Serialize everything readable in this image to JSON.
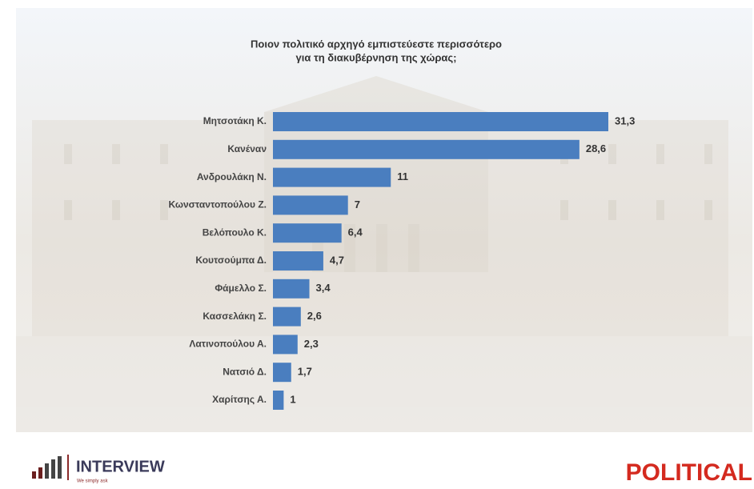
{
  "chart_data": {
    "type": "hbar",
    "title": [
      "Ποιον πολιτικό αρχηγό εμπιστεύεστε περισσότερο",
      "για τη διακυβέρνηση της χώρας;"
    ],
    "categories": [
      "Μητσοτάκη Κ.",
      "Κανέναν",
      "Ανδρουλάκη Ν.",
      "Κωνσταντοπούλου Ζ.",
      "Βελόπουλο Κ.",
      "Κουτσούμπα Δ.",
      "Φάμελλο Σ.",
      "Κασσελάκη Σ.",
      "Λατινοπούλου Α.",
      "Νατσιό Δ.",
      "Χαρίτσης Α."
    ],
    "values": [
      31.3,
      28.6,
      11,
      7,
      6.4,
      4.7,
      3.4,
      2.6,
      2.3,
      1.7,
      1
    ],
    "value_labels": [
      "31,3",
      "28,6",
      "11",
      "7",
      "6,4",
      "4,7",
      "3,4",
      "2,6",
      "2,3",
      "1,7",
      "1"
    ],
    "color": "#4a7ebf"
  },
  "logos": {
    "left": "INTERVIEW",
    "tagline": "We simply ask",
    "right": "POLITICAL"
  }
}
